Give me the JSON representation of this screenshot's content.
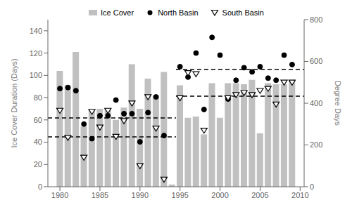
{
  "chart_data": {
    "type": "bar",
    "x": [
      1980,
      1981,
      1982,
      1983,
      1984,
      1985,
      1986,
      1987,
      1988,
      1989,
      1990,
      1991,
      1992,
      1993,
      1994,
      1995,
      1996,
      1997,
      1998,
      1999,
      2000,
      2001,
      2002,
      2003,
      2004,
      2005,
      2006,
      2007,
      2008,
      2009
    ],
    "xlim": [
      1978.5,
      2010.5
    ],
    "xticks": [
      1980,
      1985,
      1990,
      1995,
      2000,
      2005,
      2010
    ],
    "ylim": [
      0,
      150
    ],
    "yticks": [
      0,
      20,
      40,
      60,
      80,
      100,
      120,
      140
    ],
    "y2lim": [
      0,
      800
    ],
    "y2ticks": [
      0,
      200,
      400,
      600,
      800
    ],
    "ylabel": "Ice Cover Duration (Days)",
    "y2label": "Degree Days",
    "grid": false,
    "legend": "top",
    "series": [
      {
        "name": "Ice Cover",
        "type": "bar",
        "color": "#c0c0c0",
        "values": [
          104,
          91,
          121,
          54,
          69,
          70,
          70,
          60,
          71,
          110,
          70,
          97,
          82,
          103,
          2,
          91,
          62,
          63,
          47,
          93,
          62,
          93,
          93,
          92,
          96,
          48,
          93,
          92,
          92,
          96
        ]
      },
      {
        "name": "North Basin",
        "type": "scatter",
        "axis": "y2",
        "color": "#000000",
        "marker": "circle",
        "values": [
          470,
          475,
          460,
          300,
          230,
          340,
          340,
          415,
          350,
          350,
          215,
          355,
          430,
          245,
          null,
          575,
          525,
          640,
          370,
          715,
          630,
          420,
          510,
          570,
          550,
          575,
          520,
          510,
          630,
          585
        ]
      },
      {
        "name": "South Basin",
        "type": "scatter",
        "axis": "y2",
        "color": "#000000",
        "marker": "triangle_down",
        "values": [
          365,
          235,
          null,
          140,
          360,
          285,
          365,
          240,
          315,
          400,
          100,
          430,
          280,
          35,
          null,
          425,
          545,
          540,
          270,
          null,
          null,
          425,
          440,
          450,
          440,
          460,
          470,
          395,
          500,
          500
        ]
      },
      {
        "type": "line",
        "axis": "y2",
        "line_style": "dashed",
        "color": "#000000",
        "x": [
          1978.5,
          1994.5
        ],
        "values": [
          329,
          329
        ]
      },
      {
        "type": "line",
        "axis": "y2",
        "line_style": "dashed",
        "color": "#000000",
        "x": [
          1994.5,
          2010.5
        ],
        "values": [
          561,
          561
        ]
      },
      {
        "type": "line",
        "axis": "y2",
        "line_style": "dashed",
        "color": "#000000",
        "x": [
          1978.5,
          1994.5
        ],
        "values": [
          239,
          239
        ]
      },
      {
        "type": "line",
        "axis": "y2",
        "line_style": "dashed",
        "color": "#000000",
        "x": [
          1994.5,
          2010.5
        ],
        "values": [
          434,
          434
        ]
      }
    ]
  }
}
